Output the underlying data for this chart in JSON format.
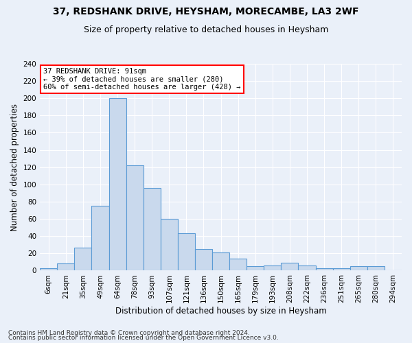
{
  "title1": "37, REDSHANK DRIVE, HEYSHAM, MORECAMBE, LA3 2WF",
  "title2": "Size of property relative to detached houses in Heysham",
  "xlabel": "Distribution of detached houses by size in Heysham",
  "ylabel": "Number of detached properties",
  "footnote1": "Contains HM Land Registry data © Crown copyright and database right 2024.",
  "footnote2": "Contains public sector information licensed under the Open Government Licence v3.0.",
  "annotation_title": "37 REDSHANK DRIVE: 91sqm",
  "annotation_line1": "← 39% of detached houses are smaller (280)",
  "annotation_line2": "60% of semi-detached houses are larger (428) →",
  "bar_labels": [
    "6sqm",
    "21sqm",
    "35sqm",
    "49sqm",
    "64sqm",
    "78sqm",
    "93sqm",
    "107sqm",
    "121sqm",
    "136sqm",
    "150sqm",
    "165sqm",
    "179sqm",
    "193sqm",
    "208sqm",
    "222sqm",
    "236sqm",
    "251sqm",
    "265sqm",
    "280sqm",
    "294sqm"
  ],
  "bar_values": [
    3,
    8,
    27,
    75,
    200,
    122,
    96,
    60,
    43,
    25,
    21,
    14,
    5,
    6,
    9,
    6,
    3,
    3,
    5,
    5,
    0
  ],
  "bar_color": "#c9d9ed",
  "bar_edge_color": "#5b9bd5",
  "ylim": [
    0,
    240
  ],
  "yticks": [
    0,
    20,
    40,
    60,
    80,
    100,
    120,
    140,
    160,
    180,
    200,
    220,
    240
  ],
  "bg_color": "#eaf0f9",
  "plot_bg_color": "#eaf0f9",
  "annotation_box_color": "white",
  "annotation_box_edge": "red",
  "title1_fontsize": 10,
  "title2_fontsize": 9,
  "xlabel_fontsize": 8.5,
  "ylabel_fontsize": 8.5,
  "footnote_fontsize": 6.5,
  "tick_fontsize": 7.5
}
